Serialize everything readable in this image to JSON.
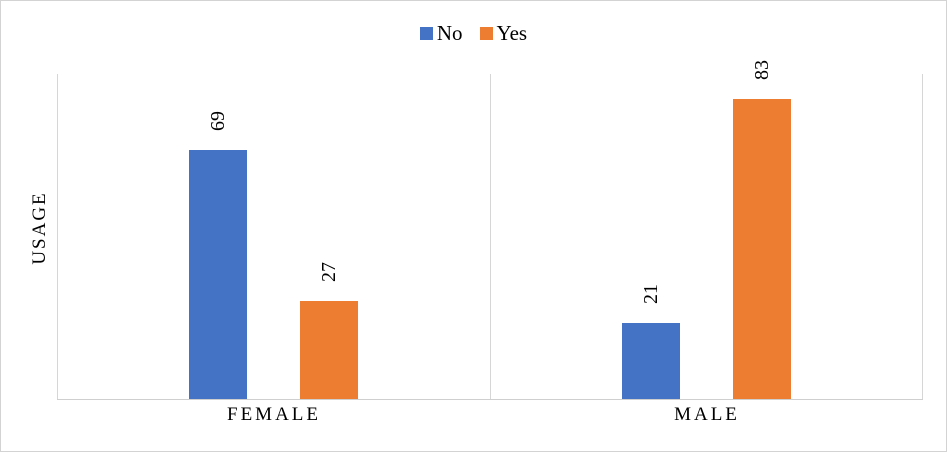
{
  "chart_data": {
    "type": "bar",
    "categories": [
      "FEMALE",
      "MALE"
    ],
    "series": [
      {
        "name": "No",
        "color": "#4472C4",
        "values": [
          69,
          21
        ]
      },
      {
        "name": "Yes",
        "color": "#ED7D31",
        "values": [
          27,
          83
        ]
      }
    ],
    "title": "",
    "xlabel": "",
    "ylabel": "USAGE",
    "ylim": [
      0,
      90
    ],
    "grid": false,
    "legend_position": "top",
    "data_labels": {
      "visible": true,
      "rotation": -90
    }
  },
  "colors": {
    "axis_line": "#cfcfcf",
    "plot_border": "#d6d6d6",
    "figure_border": "#d3d3d3",
    "background": "#ffffff"
  }
}
